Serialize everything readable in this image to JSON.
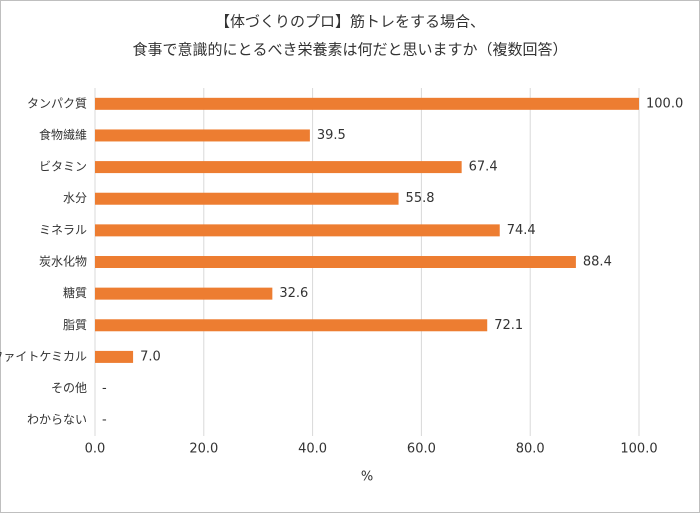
{
  "chart_data": {
    "type": "bar",
    "orientation": "horizontal",
    "title": [
      "【体づくりのプロ】筋トレをする場合、",
      "食事で意識的にとるべき栄養素は何だと思いますか（複数回答）"
    ],
    "categories": [
      "タンパク質",
      "食物繊維",
      "ビタミン",
      "水分",
      "ミネラル",
      "炭水化物",
      "糖質",
      "脂質",
      "ファイトケミカル",
      "その他",
      "わからない"
    ],
    "values": [
      100,
      39.5,
      67.4,
      55.8,
      74.4,
      88.4,
      32.6,
      72.1,
      7,
      null,
      null
    ],
    "value_labels": [
      "100.0",
      "39.5",
      "67.4",
      "55.8",
      "74.4",
      "88.4",
      "32.6",
      "72.1",
      "7.0",
      "-",
      "-"
    ],
    "color": "#ed7d31",
    "xlim": [
      0,
      100
    ],
    "xticks": [
      {
        "value": 0,
        "label": "0.0"
      },
      {
        "value": 20,
        "label": "20.0"
      },
      {
        "value": 40,
        "label": "40.0"
      },
      {
        "value": 60,
        "label": "60.0"
      },
      {
        "value": 80,
        "label": "80.0"
      },
      {
        "value": 100,
        "label": "100.0"
      }
    ],
    "xlabel": "%",
    "grid": true
  }
}
